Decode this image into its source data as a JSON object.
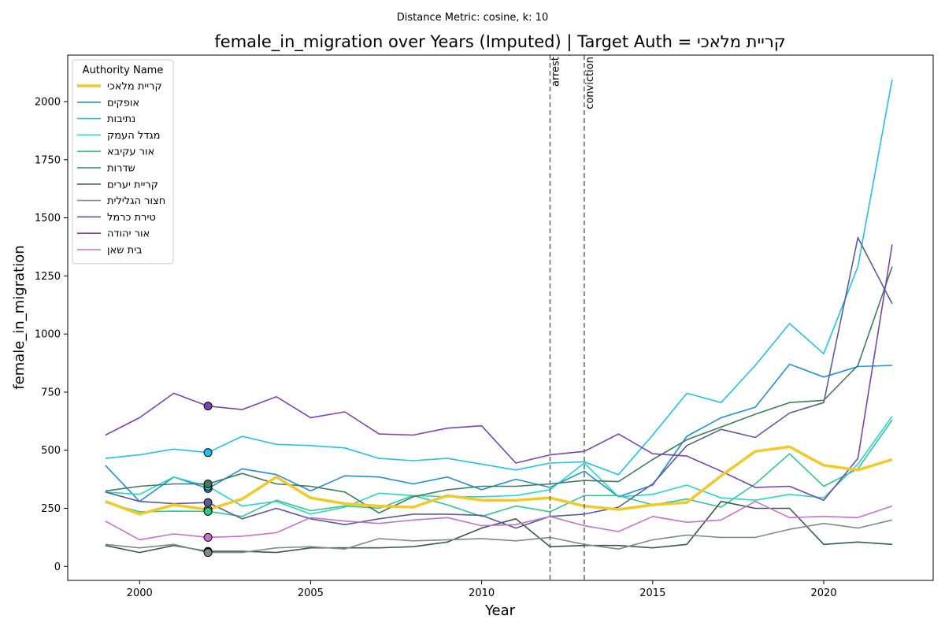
{
  "chart_data": {
    "type": "line",
    "suptitle": "Distance Metric: cosine, k: 10",
    "title": "female_in_migration over Years (Imputed) | Target Auth = קריית מלאכי",
    "xlabel": "Year",
    "ylabel": "female_in_migration",
    "xlim": [
      1997.9,
      2023.2
    ],
    "ylim": [
      -60,
      2200
    ],
    "xticks": [
      2000,
      2005,
      2010,
      2015,
      2020
    ],
    "yticks": [
      0,
      250,
      500,
      750,
      1000,
      1250,
      1500,
      1750,
      2000
    ],
    "grid": false,
    "legend_title": "Authority Name",
    "legend_position": "top-left",
    "x": [
      1999,
      2000,
      2001,
      2002,
      2003,
      2004,
      2005,
      2006,
      2007,
      2008,
      2009,
      2010,
      2011,
      2012,
      2013,
      2014,
      2015,
      2016,
      2017,
      2018,
      2019,
      2020,
      2021,
      2022
    ],
    "marker_year": 2002,
    "events": [
      {
        "year": 2012,
        "label": "arrest"
      },
      {
        "year": 2013,
        "label": "conviction"
      }
    ],
    "series": [
      {
        "name": "קריית מלאכי",
        "color": "#F2C927",
        "target": true,
        "values": [
          280,
          225,
          265,
          245,
          290,
          385,
          295,
          270,
          260,
          255,
          305,
          285,
          285,
          295,
          260,
          245,
          265,
          275,
          390,
          495,
          515,
          435,
          415,
          460
        ]
      },
      {
        "name": "אופקים",
        "color": "#1F8FE0",
        "target": false,
        "values": [
          435,
          280,
          385,
          335,
          420,
          395,
          325,
          390,
          385,
          355,
          385,
          330,
          375,
          340,
          410,
          300,
          350,
          560,
          640,
          685,
          870,
          815,
          860,
          865
        ]
      },
      {
        "name": "נתיבות",
        "color": "#1FC3EA",
        "target": false,
        "values": [
          465,
          480,
          505,
          490,
          560,
          525,
          520,
          510,
          465,
          455,
          465,
          440,
          415,
          445,
          450,
          395,
          565,
          745,
          705,
          865,
          1045,
          915,
          1290,
          2095
        ]
      },
      {
        "name": "מגדל העמק",
        "color": "#26D8C8",
        "target": false,
        "values": [
          320,
          310,
          385,
          345,
          260,
          280,
          225,
          255,
          315,
          305,
          300,
          300,
          305,
          330,
          445,
          300,
          310,
          350,
          295,
          285,
          310,
          295,
          440,
          645
        ]
      },
      {
        "name": "אור עקיבא",
        "color": "#2EC98C",
        "target": false,
        "values": [
          275,
          235,
          238,
          237,
          215,
          285,
          240,
          260,
          250,
          305,
          265,
          215,
          260,
          235,
          305,
          305,
          265,
          290,
          255,
          355,
          485,
          345,
          420,
          630
        ]
      },
      {
        "name": "שדרות",
        "color": "#3E7D5C",
        "target": false,
        "values": [
          325,
          345,
          355,
          355,
          400,
          355,
          345,
          320,
          230,
          300,
          330,
          345,
          345,
          355,
          370,
          365,
          460,
          545,
          600,
          655,
          705,
          715,
          865,
          1290
        ]
      },
      {
        "name": "קריית יערים",
        "color": "#3A5A4A",
        "target": false,
        "values": [
          90,
          60,
          90,
          65,
          65,
          60,
          80,
          80,
          80,
          85,
          105,
          165,
          205,
          85,
          90,
          90,
          80,
          95,
          280,
          250,
          250,
          95,
          105,
          95
        ]
      },
      {
        "name": "חצור הגלילית",
        "color": "#7F8C88",
        "target": false,
        "values": [
          95,
          80,
          95,
          60,
          60,
          80,
          85,
          75,
          120,
          110,
          115,
          120,
          110,
          125,
          95,
          75,
          115,
          135,
          125,
          125,
          160,
          185,
          165,
          200
        ]
      },
      {
        "name": "טירת כרמל",
        "color": "#5A5C9A",
        "target": false,
        "values": [
          320,
          280,
          270,
          275,
          205,
          250,
          205,
          180,
          205,
          225,
          225,
          220,
          165,
          215,
          225,
          255,
          355,
          520,
          590,
          555,
          660,
          705,
          1415,
          1130
        ]
      },
      {
        "name": "אור יהודה",
        "color": "#7B45B0",
        "target": false,
        "values": [
          565,
          640,
          745,
          690,
          675,
          730,
          640,
          665,
          570,
          565,
          595,
          605,
          445,
          480,
          495,
          570,
          485,
          475,
          410,
          340,
          345,
          285,
          465,
          1385
        ]
      },
      {
        "name": "בית שאן",
        "color": "#C870D0",
        "target": false,
        "values": [
          195,
          115,
          140,
          125,
          130,
          145,
          210,
          195,
          185,
          200,
          210,
          175,
          180,
          215,
          175,
          150,
          215,
          190,
          200,
          280,
          210,
          215,
          210,
          260
        ]
      }
    ]
  }
}
